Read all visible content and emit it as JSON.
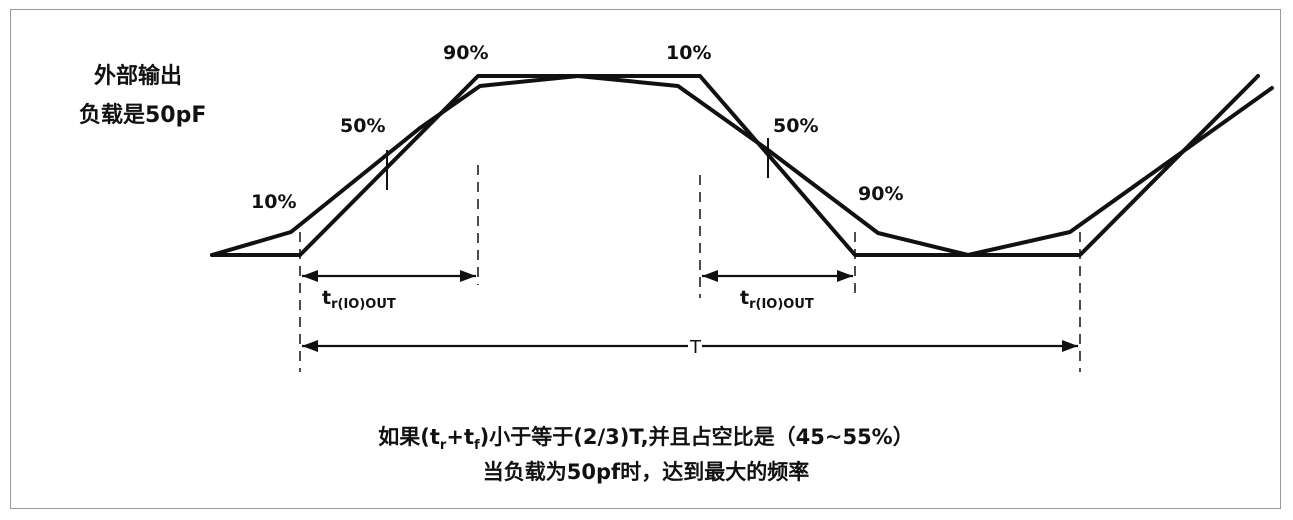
{
  "side_label": {
    "line1": "外部输出",
    "line2": "负载是50pF"
  },
  "levels": {
    "top_left": "90%",
    "top_right": "10%",
    "rise_mid": "50%",
    "rise_low": "10%",
    "fall_mid": "50%",
    "fall_low": "90%"
  },
  "timing": {
    "rise_main": "t",
    "rise_sub": "r(IO)OUT",
    "fall_main": "t",
    "fall_sub": "r(IO)OUT",
    "period": "T"
  },
  "note": {
    "l1_a": "如果(t",
    "l1_sub1": "r",
    "l1_b": "+t",
    "l1_sub2": "f",
    "l1_c": ")小于等于(2/3)T,并且占空比是（45~55%）",
    "line2": "当负载为50pf时，达到最大的频率"
  },
  "colors": {
    "stroke": "#111111",
    "frame": "#9a9a9a",
    "background": "#ffffff"
  }
}
